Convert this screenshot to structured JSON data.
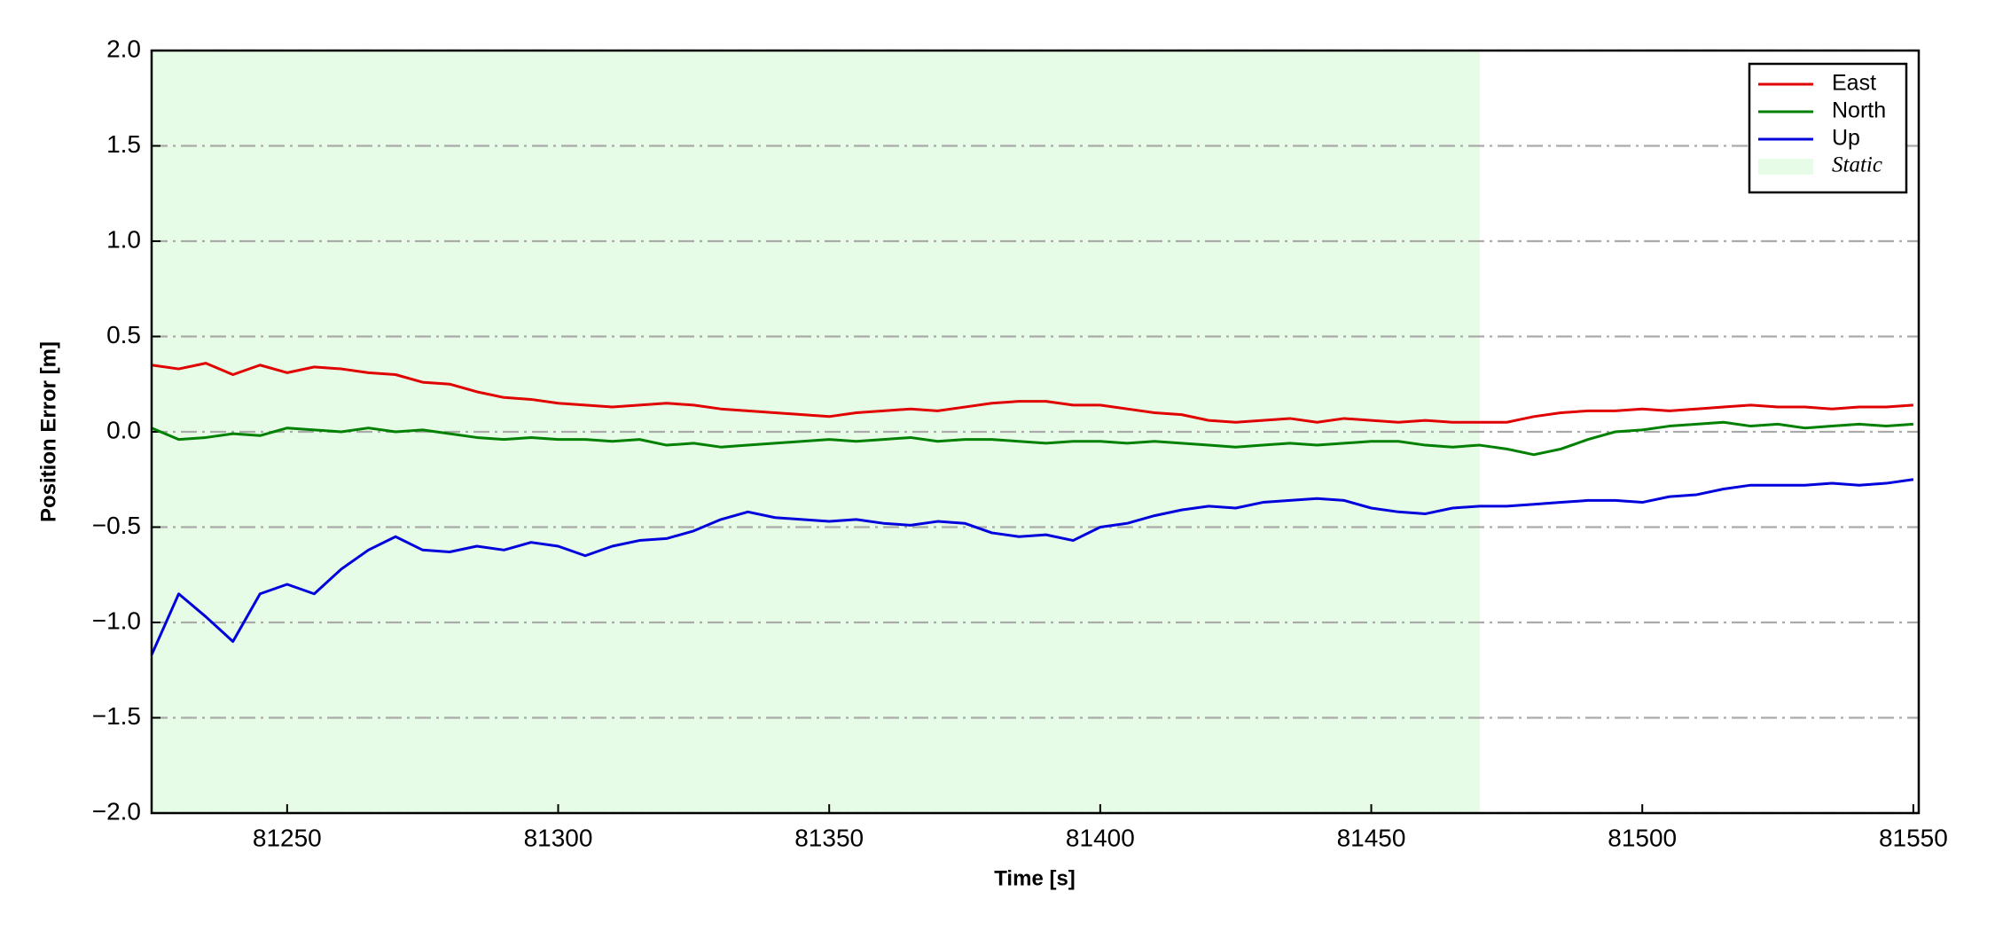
{
  "chart_data": {
    "type": "line",
    "xlabel": "Time [s]",
    "ylabel": "Position Error [m]",
    "x": [
      81225,
      81230,
      81235,
      81240,
      81245,
      81250,
      81255,
      81260,
      81265,
      81270,
      81275,
      81280,
      81285,
      81290,
      81295,
      81300,
      81305,
      81310,
      81315,
      81320,
      81325,
      81330,
      81335,
      81340,
      81345,
      81350,
      81355,
      81360,
      81365,
      81370,
      81375,
      81380,
      81385,
      81390,
      81395,
      81400,
      81405,
      81410,
      81415,
      81420,
      81425,
      81430,
      81435,
      81440,
      81445,
      81450,
      81455,
      81460,
      81465,
      81470,
      81475,
      81480,
      81485,
      81490,
      81495,
      81500,
      81505,
      81510,
      81515,
      81520,
      81525,
      81530,
      81535,
      81540,
      81545,
      81550
    ],
    "series": [
      {
        "name": "East",
        "color": "#e00000",
        "values": [
          0.35,
          0.33,
          0.36,
          0.3,
          0.35,
          0.31,
          0.34,
          0.33,
          0.31,
          0.3,
          0.26,
          0.25,
          0.21,
          0.18,
          0.17,
          0.15,
          0.14,
          0.13,
          0.14,
          0.15,
          0.14,
          0.12,
          0.11,
          0.1,
          0.09,
          0.08,
          0.1,
          0.11,
          0.12,
          0.11,
          0.13,
          0.15,
          0.16,
          0.16,
          0.14,
          0.14,
          0.12,
          0.1,
          0.09,
          0.06,
          0.05,
          0.06,
          0.07,
          0.05,
          0.07,
          0.06,
          0.05,
          0.06,
          0.05,
          0.05,
          0.05,
          0.08,
          0.1,
          0.11,
          0.11,
          0.12,
          0.11,
          0.12,
          0.13,
          0.14,
          0.13,
          0.13,
          0.12,
          0.13,
          0.13,
          0.14
        ]
      },
      {
        "name": "North",
        "color": "#008000",
        "values": [
          0.02,
          -0.04,
          -0.03,
          -0.01,
          -0.02,
          0.02,
          0.01,
          0.0,
          0.02,
          0.0,
          0.01,
          -0.01,
          -0.03,
          -0.04,
          -0.03,
          -0.04,
          -0.04,
          -0.05,
          -0.04,
          -0.07,
          -0.06,
          -0.08,
          -0.07,
          -0.06,
          -0.05,
          -0.04,
          -0.05,
          -0.04,
          -0.03,
          -0.05,
          -0.04,
          -0.04,
          -0.05,
          -0.06,
          -0.05,
          -0.05,
          -0.06,
          -0.05,
          -0.06,
          -0.07,
          -0.08,
          -0.07,
          -0.06,
          -0.07,
          -0.06,
          -0.05,
          -0.05,
          -0.07,
          -0.08,
          -0.07,
          -0.09,
          -0.12,
          -0.09,
          -0.04,
          0.0,
          0.01,
          0.03,
          0.04,
          0.05,
          0.03,
          0.04,
          0.02,
          0.03,
          0.04,
          0.03,
          0.04
        ]
      },
      {
        "name": "Up",
        "color": "#0000dd",
        "values": [
          -1.17,
          -0.85,
          -0.97,
          -1.1,
          -0.85,
          -0.8,
          -0.85,
          -0.72,
          -0.62,
          -0.55,
          -0.62,
          -0.63,
          -0.6,
          -0.62,
          -0.58,
          -0.6,
          -0.65,
          -0.6,
          -0.57,
          -0.56,
          -0.52,
          -0.46,
          -0.42,
          -0.45,
          -0.46,
          -0.47,
          -0.46,
          -0.48,
          -0.49,
          -0.47,
          -0.48,
          -0.53,
          -0.55,
          -0.54,
          -0.57,
          -0.5,
          -0.48,
          -0.44,
          -0.41,
          -0.39,
          -0.4,
          -0.37,
          -0.36,
          -0.35,
          -0.36,
          -0.4,
          -0.42,
          -0.43,
          -0.4,
          -0.39,
          -0.39,
          -0.38,
          -0.37,
          -0.36,
          -0.36,
          -0.37,
          -0.34,
          -0.33,
          -0.3,
          -0.28,
          -0.28,
          -0.28,
          -0.27,
          -0.28,
          -0.27,
          -0.25
        ]
      }
    ],
    "shaded_region": {
      "name": "Static",
      "color": "#e6fce6",
      "xlim": [
        81225,
        81470
      ]
    },
    "xlim": [
      81225,
      81551
    ],
    "xticks": [
      81250,
      81300,
      81350,
      81400,
      81450,
      81500,
      81550
    ],
    "ylim": [
      -2.0,
      2.0
    ],
    "yticks": [
      {
        "value": -2.0,
        "label": "−2.0"
      },
      {
        "value": -1.5,
        "label": "−1.5"
      },
      {
        "value": -1.0,
        "label": "−1.0"
      },
      {
        "value": -0.5,
        "label": "−0.5"
      },
      {
        "value": 0.0,
        "label": "0.0"
      },
      {
        "value": 0.5,
        "label": "0.5"
      },
      {
        "value": 1.0,
        "label": "1.0"
      },
      {
        "value": 1.5,
        "label": "1.5"
      },
      {
        "value": 2.0,
        "label": "2.0"
      }
    ],
    "grid": true,
    "legend": "upper right"
  }
}
